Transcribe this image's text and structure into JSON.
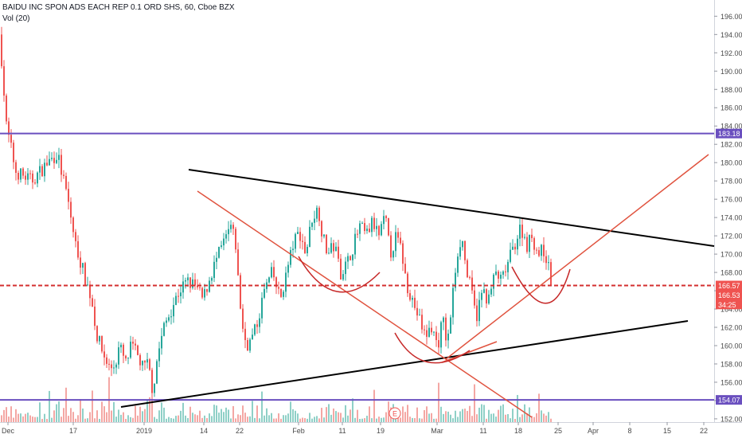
{
  "header": {
    "title": "BAIDU INC SPON ADS EACH REP 0.1 ORD SHS, 60, Cboe BZX",
    "volume_label": "Vol (20)"
  },
  "colors": {
    "up": "#26a69a",
    "down": "#ef5350",
    "vol_up": "#8fd0c7",
    "vol_down": "#f4a7a4",
    "support_line": "#6a4fbf",
    "dashed_line": "#d32f2f",
    "trend_black": "#000000",
    "trend_red": "#e0533f",
    "curve": "#c62828"
  },
  "chart_data": {
    "type": "candlestick",
    "title": "BAIDU INC SPON ADS EACH REP 0.1 ORD SHS, 60, Cboe BZX",
    "ylim": [
      151,
      197
    ],
    "y_ticks": [
      152,
      154,
      156,
      158,
      160,
      162,
      164,
      166,
      168,
      170,
      172,
      174,
      176,
      178,
      180,
      182,
      184,
      186,
      188,
      190,
      192,
      194,
      196
    ],
    "x_ticks": [
      "Dec",
      "17",
      "2019",
      "14",
      "22",
      "Feb",
      "11",
      "19",
      "Mar",
      "11",
      "18",
      "25",
      "Apr",
      "8",
      "15",
      "22"
    ],
    "price_path": [
      [
        0,
        194
      ],
      [
        3,
        190
      ],
      [
        8,
        184
      ],
      [
        20,
        179
      ],
      [
        40,
        178
      ],
      [
        60,
        180
      ],
      [
        72,
        181
      ],
      [
        85,
        176
      ],
      [
        95,
        171
      ],
      [
        105,
        168
      ],
      [
        115,
        165
      ],
      [
        122,
        161
      ],
      [
        130,
        159
      ],
      [
        138,
        157.5
      ],
      [
        145,
        158
      ],
      [
        150,
        160
      ],
      [
        158,
        158
      ],
      [
        165,
        160
      ],
      [
        172,
        159
      ],
      [
        180,
        157.5
      ],
      [
        186,
        158
      ],
      [
        192,
        155
      ],
      [
        198,
        159
      ],
      [
        206,
        162
      ],
      [
        215,
        164
      ],
      [
        225,
        166
      ],
      [
        235,
        167
      ],
      [
        245,
        166.5
      ],
      [
        255,
        165
      ],
      [
        262,
        167
      ],
      [
        270,
        169
      ],
      [
        280,
        171
      ],
      [
        290,
        173
      ],
      [
        296,
        171
      ],
      [
        300,
        166
      ],
      [
        306,
        161
      ],
      [
        312,
        160
      ],
      [
        322,
        162
      ],
      [
        332,
        166
      ],
      [
        342,
        168
      ],
      [
        352,
        165
      ],
      [
        360,
        168
      ],
      [
        368,
        171
      ],
      [
        376,
        172.5
      ],
      [
        384,
        170
      ],
      [
        392,
        174
      ],
      [
        400,
        175
      ],
      [
        405,
        172
      ],
      [
        412,
        170
      ],
      [
        420,
        171
      ],
      [
        428,
        168
      ],
      [
        436,
        169
      ],
      [
        444,
        171
      ],
      [
        452,
        173
      ],
      [
        460,
        172
      ],
      [
        468,
        173.5
      ],
      [
        476,
        172
      ],
      [
        484,
        174
      ],
      [
        490,
        170
      ],
      [
        498,
        172
      ],
      [
        505,
        170
      ],
      [
        510,
        167
      ],
      [
        518,
        165
      ],
      [
        526,
        163
      ],
      [
        534,
        161
      ],
      [
        542,
        162
      ],
      [
        550,
        160
      ],
      [
        556,
        163
      ],
      [
        562,
        160
      ],
      [
        568,
        165
      ],
      [
        574,
        170
      ],
      [
        580,
        172
      ],
      [
        586,
        168
      ],
      [
        592,
        166
      ],
      [
        598,
        163
      ],
      [
        606,
        166
      ],
      [
        614,
        165
      ],
      [
        622,
        168
      ],
      [
        630,
        167
      ],
      [
        638,
        169
      ],
      [
        646,
        171
      ],
      [
        654,
        173
      ],
      [
        662,
        171
      ],
      [
        668,
        172
      ],
      [
        676,
        170
      ],
      [
        684,
        170.5
      ],
      [
        690,
        168
      ],
      [
        694,
        166.5
      ]
    ],
    "current_price": 166.57,
    "levels": [
      183.18,
      166.57,
      154.07
    ],
    "price_tags": [
      {
        "value": 183.18,
        "label": "183.18",
        "color": "#6a4fbf"
      },
      {
        "value": 166.57,
        "label": "166.57",
        "color": "#ef5350"
      },
      {
        "value": 165.53,
        "label": "166.53",
        "color": "#ef5350"
      },
      {
        "value": 164.5,
        "label": "34:25",
        "color": "#ef5350"
      },
      {
        "value": 154.07,
        "label": "154.07",
        "color": "#6a4fbf"
      }
    ],
    "earnings_marker": "E"
  }
}
